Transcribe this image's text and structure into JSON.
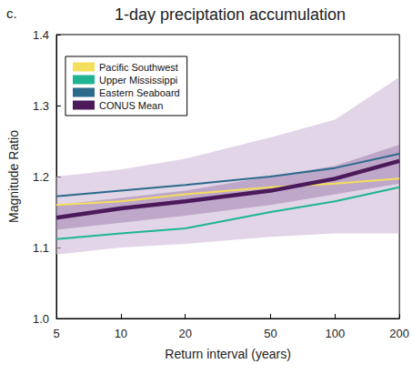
{
  "chart_data": {
    "type": "line",
    "panel_label": "c.",
    "title": "1-day preciptation accumulation",
    "x_label": "Return interval (years)",
    "y_label": "Magnitude Ratio",
    "log": "x",
    "x": [
      5,
      10,
      20,
      50,
      100,
      200
    ],
    "xlim": [
      5,
      200
    ],
    "xticks": [
      5,
      10,
      20,
      50,
      100,
      200
    ],
    "ylim": [
      1.0,
      1.4
    ],
    "yticks": [
      {
        "value": 1.0,
        "label": "1.0"
      },
      {
        "value": 1.1,
        "label": "1.1"
      },
      {
        "value": 1.2,
        "label": "1.2"
      },
      {
        "value": 1.3,
        "label": "1.3"
      },
      {
        "value": 1.4,
        "label": "1.4"
      }
    ],
    "grid": false,
    "legend": "upper left",
    "series": [
      {
        "name": "Pacific Southwest",
        "color": "#f3df5c",
        "values": [
          1.16,
          1.165,
          1.175,
          1.185,
          1.19,
          1.197
        ]
      },
      {
        "name": "Upper Mississippi",
        "color": "#1fb592",
        "values": [
          1.112,
          1.12,
          1.127,
          1.15,
          1.165,
          1.185
        ]
      },
      {
        "name": "Eastern Seaboard",
        "color": "#2b6a8a",
        "values": [
          1.172,
          1.18,
          1.188,
          1.2,
          1.212,
          1.232
        ]
      },
      {
        "name": "CONUS Mean",
        "color": "#4b1a5a",
        "values": [
          1.142,
          1.155,
          1.165,
          1.18,
          1.197,
          1.222
        ],
        "band_wide": {
          "lower": [
            1.09,
            1.1,
            1.105,
            1.115,
            1.12,
            1.12
          ],
          "upper": [
            1.2,
            1.21,
            1.225,
            1.255,
            1.28,
            1.34
          ]
        },
        "band_narrow": {
          "lower": [
            1.125,
            1.135,
            1.145,
            1.16,
            1.175,
            1.19
          ],
          "upper": [
            1.16,
            1.17,
            1.18,
            1.2,
            1.215,
            1.245
          ]
        }
      }
    ]
  }
}
